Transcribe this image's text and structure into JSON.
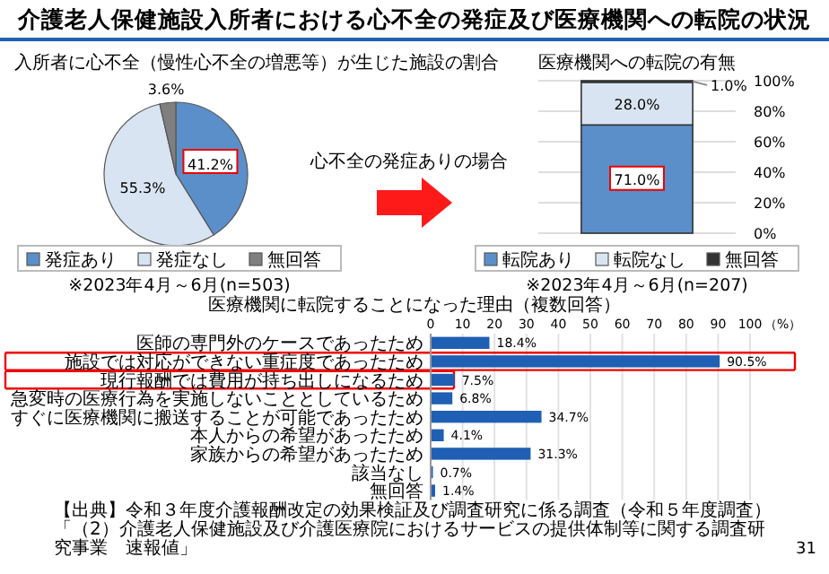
{
  "chart_data": [
    {
      "type": "pie",
      "title": "介護老人保健施設入所者における心不全の発症及び医療機関への転院の状況",
      "subtitle": "入所者に心不全（慢性心不全の増悪等）が生じた施設の割合",
      "categories": [
        "発症あり",
        "発症なし",
        "無回答"
      ],
      "values": [
        41.2,
        55.3,
        3.6
      ],
      "colors": [
        "#5b8fc9",
        "#d9e4f2",
        "#7f7f7f"
      ],
      "value_labels": [
        "41.2%",
        "55.3%",
        "3.6%"
      ],
      "legend": "bottom",
      "annotations": [
        "※2023年4月～6月(n=503)",
        "心不全の発症ありの場合"
      ]
    },
    {
      "type": "bar",
      "stacked": true,
      "title": "医療機関への転院の有無",
      "categories": [
        null
      ],
      "series": [
        {
          "name": "転院あり",
          "color": "#5b8fc9",
          "values": [
            71.0
          ],
          "value_labels": [
            "71.0%"
          ]
        },
        {
          "name": "転院なし",
          "color": "#d9e4f2",
          "values": [
            28.0
          ],
          "value_labels": [
            "28.0%"
          ]
        },
        {
          "name": "無回答",
          "color": "#333333",
          "values": [
            1.0
          ],
          "value_labels": [
            "1.0%"
          ]
        }
      ],
      "ylim": [
        0,
        100
      ],
      "yticks": [
        {
          "value": 0,
          "label": "0%"
        },
        {
          "value": 20,
          "label": "20%"
        },
        {
          "value": 40,
          "label": "40%"
        },
        {
          "value": 60,
          "label": "60%"
        },
        {
          "value": 80,
          "label": "80%"
        },
        {
          "value": 100,
          "label": "100%"
        }
      ],
      "grid": "y",
      "legend": "bottom",
      "annotations": [
        "※2023年4月～6月(n=207)"
      ]
    },
    {
      "type": "bar",
      "orientation": "horizontal",
      "title": "医療機関に転院することになった理由（複数回答）",
      "xlabel": "（%）",
      "categories": [
        "医師の専門外のケースであったため",
        "施設では対応ができない重症度であったため",
        "現行報酬では費用が持ち出しになるため",
        "急変時の医療行為を実施しないこととしているため",
        "すぐに医療機関に搬送することが可能であったため",
        "本人からの希望があったため",
        "家族からの希望があったため",
        "該当なし",
        "無回答"
      ],
      "values": [
        18.4,
        90.5,
        7.5,
        6.8,
        34.7,
        4.1,
        31.3,
        0.7,
        1.4
      ],
      "color": "#1f5fb4",
      "value_labels": [
        "18.4%",
        "90.5%",
        "7.5%",
        "6.8%",
        "34.7%",
        "4.1%",
        "31.3%",
        "0.7%",
        "1.4%"
      ],
      "xlim": [
        0,
        100
      ],
      "xticks": [
        0,
        10,
        20,
        30,
        40,
        50,
        60,
        70,
        80,
        90,
        100
      ],
      "grid": "x",
      "annotations": [
        "【出典】令和３年度介護報酬改定の効果検証及び調査研究に係る調査（令和５年度調査）",
        "「（2）介護老人保健施設及び介護医療院におけるサービスの提供体制等に関する調査研究事業　速報値」",
        "31"
      ]
    }
  ]
}
